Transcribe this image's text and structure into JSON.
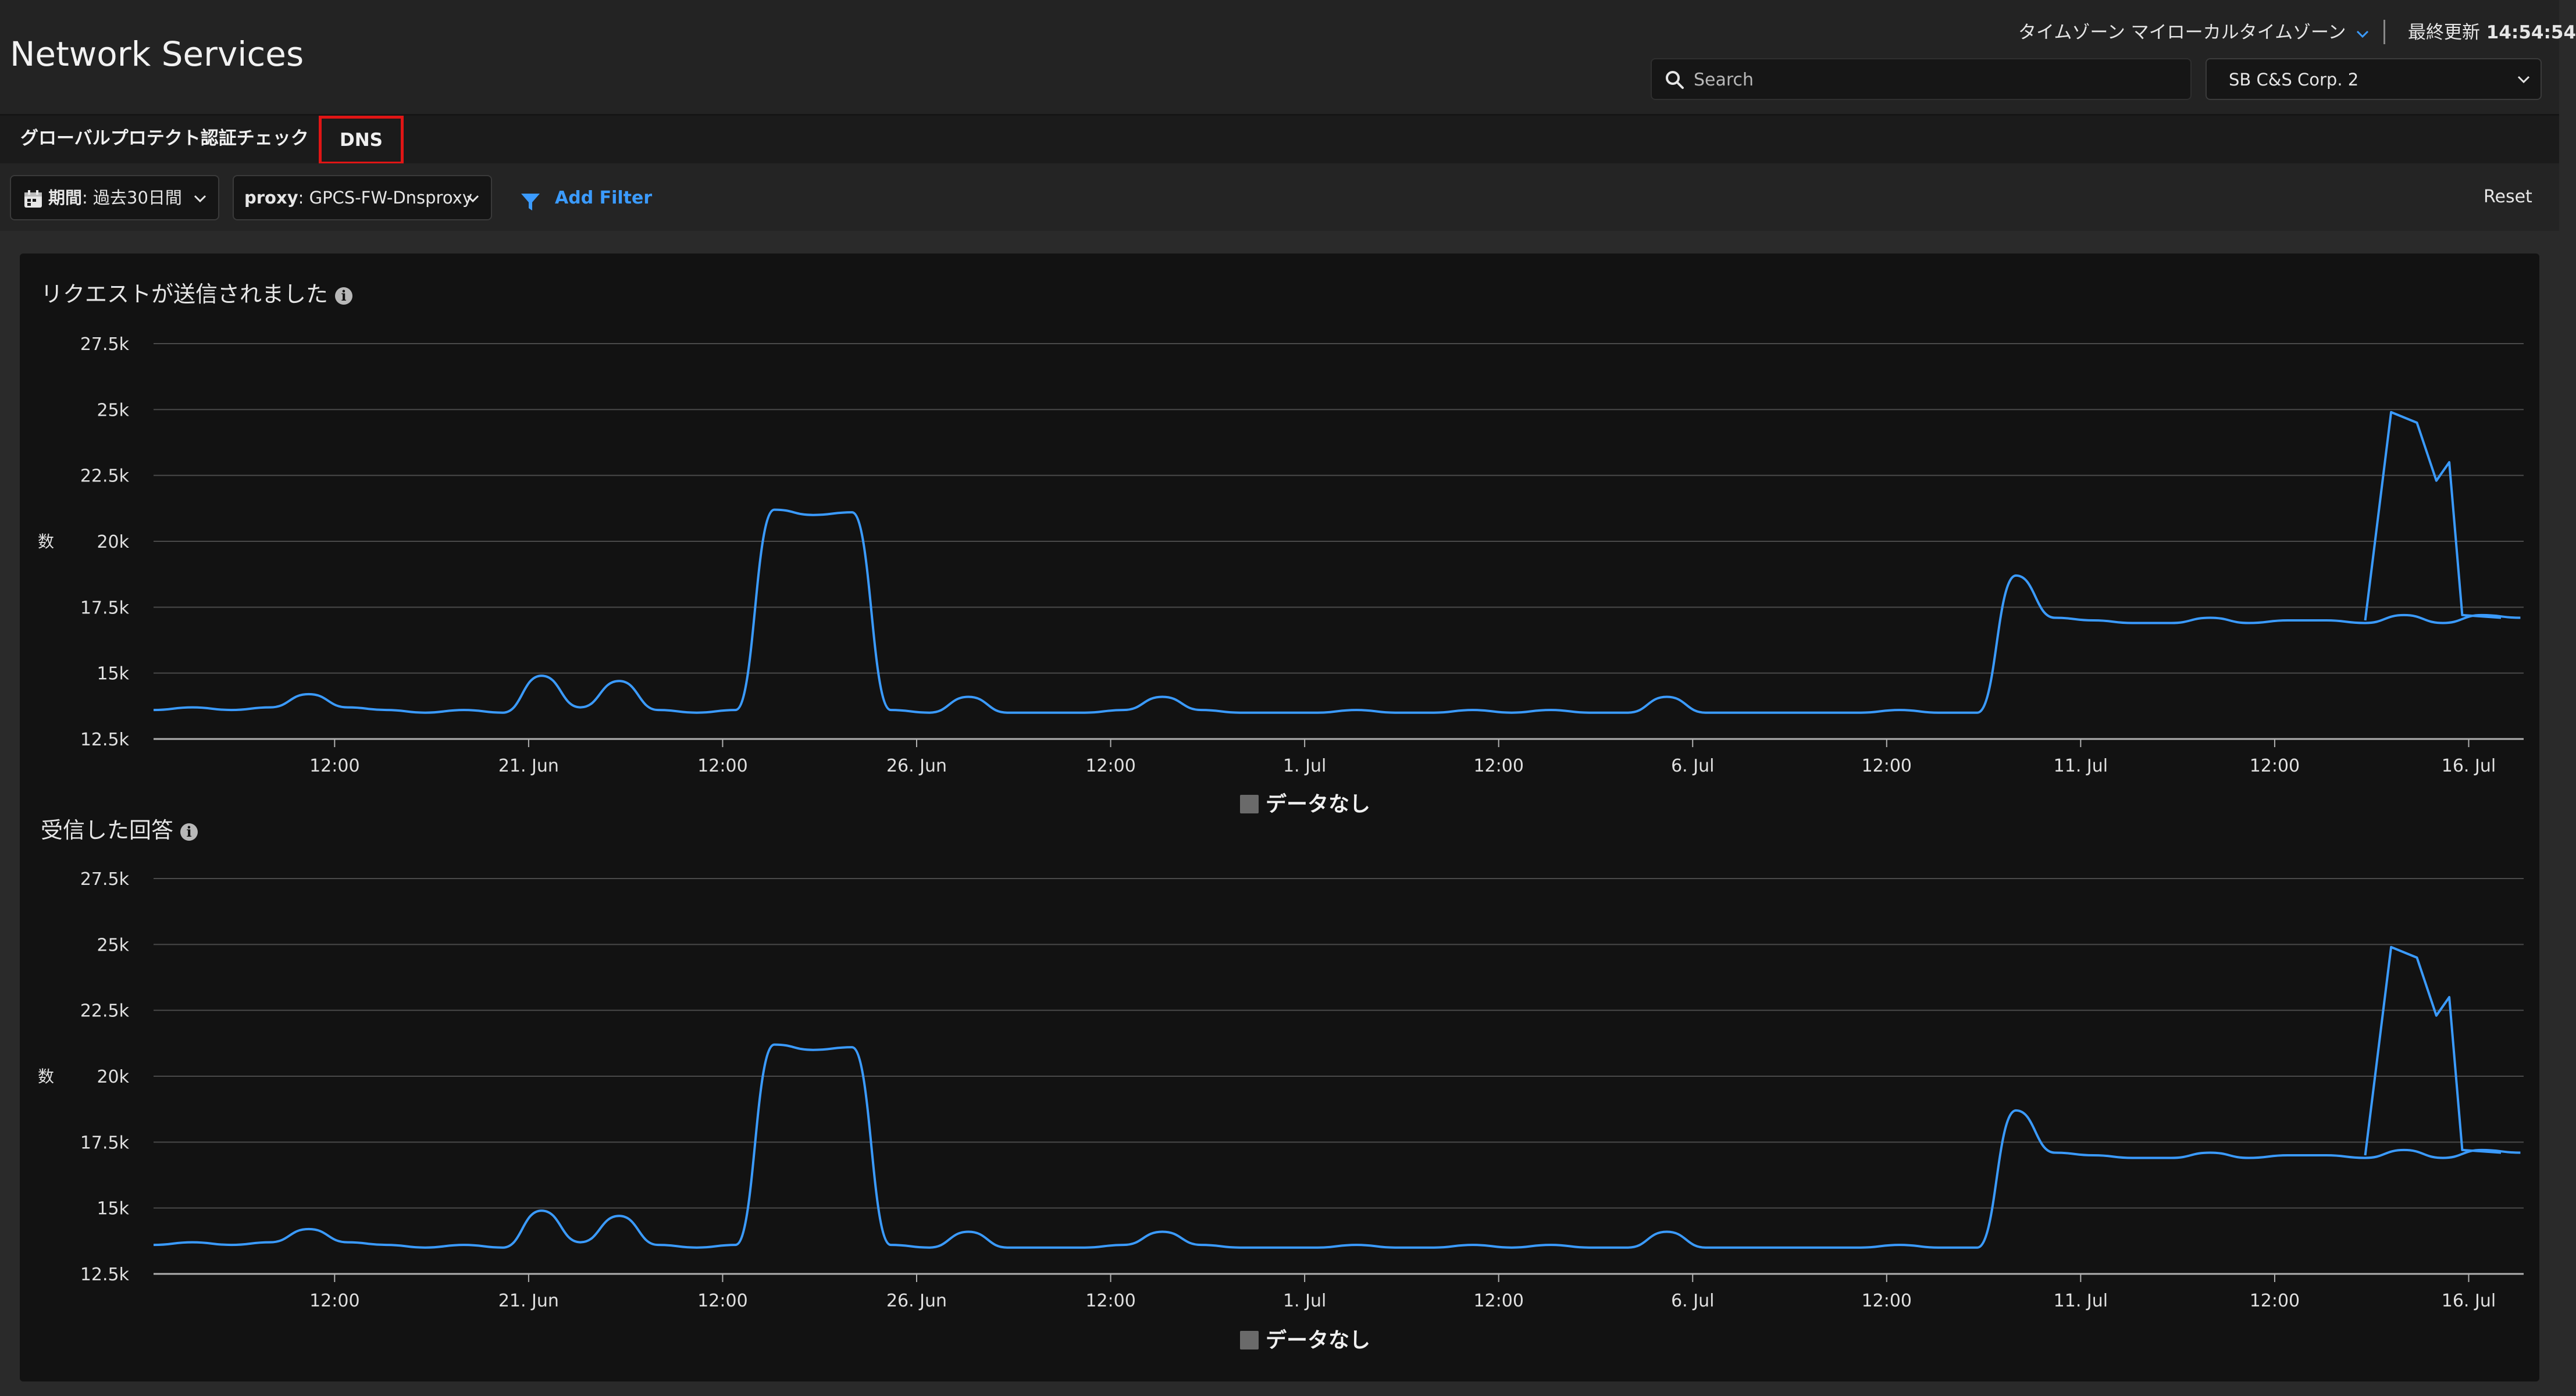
{
  "header": {
    "title": "Network Services",
    "timezone_label": "タイムゾーン マイローカルタイムゾーン",
    "last_updated_label": "最終更新",
    "last_updated_time": "14:54:54",
    "search_placeholder": "Search",
    "tenant": "SB C&S Corp. 2"
  },
  "tabs": [
    {
      "label": "グローバルプロテクト認証チェック",
      "selected": false
    },
    {
      "label": "DNS",
      "selected": true
    }
  ],
  "filters": {
    "period_key": "期間",
    "period_value": "過去30日間",
    "proxy_key": "proxy",
    "proxy_value": "GPCS-FW-Dnsproxy",
    "add_filter": "Add Filter",
    "reset": "Reset"
  },
  "colors": {
    "line": "#3b9bff",
    "accent": "#3b9bff",
    "highlight_border": "#e01515",
    "panel_bg": "#121212"
  },
  "chart_data": [
    {
      "type": "line",
      "title": "リクエストが送信されました",
      "ylabel": "数",
      "legend": "データなし",
      "legend_placement": "bottom-center",
      "ylim": [
        12500,
        27500
      ],
      "y_ticks": [
        "12.5k",
        "15k",
        "17.5k",
        "20k",
        "22.5k",
        "25k",
        "27.5k"
      ],
      "x_ticks": [
        "12:00",
        "21. Jun",
        "12:00",
        "26. Jun",
        "12:00",
        "1. Jul",
        "12:00",
        "6. Jul",
        "12:00",
        "11. Jul",
        "12:00",
        "16. Jul"
      ],
      "x_range_days": [
        "2024-06-16 04:00",
        "2024-07-16 17:00"
      ],
      "x": [
        "06-16 04:00",
        "06-16 16:00",
        "06-17 04:00",
        "06-17 16:00",
        "06-18 04:00",
        "06-18 16:00",
        "06-19 04:00",
        "06-19 16:00",
        "06-20 04:00",
        "06-20 16:00",
        "06-21 04:00",
        "06-21 16:00",
        "06-22 04:00",
        "06-22 16:00",
        "06-23 04:00",
        "06-23 16:00",
        "06-24 04:00",
        "06-24 16:00",
        "06-25 04:00",
        "06-25 16:00",
        "06-26 04:00",
        "06-26 16:00",
        "06-27 04:00",
        "06-27 16:00",
        "06-28 04:00",
        "06-28 16:00",
        "06-29 04:00",
        "06-29 16:00",
        "06-30 04:00",
        "06-30 16:00",
        "07-01 04:00",
        "07-01 16:00",
        "07-02 04:00",
        "07-02 16:00",
        "07-03 04:00",
        "07-03 16:00",
        "07-04 04:00",
        "07-04 16:00",
        "07-05 04:00",
        "07-05 16:00",
        "07-06 04:00",
        "07-06 16:00",
        "07-07 04:00",
        "07-07 16:00",
        "07-08 04:00",
        "07-08 16:00",
        "07-09 04:00",
        "07-09 16:00",
        "07-10 04:00",
        "07-10 16:00",
        "07-11 04:00",
        "07-11 16:00",
        "07-12 04:00",
        "07-12 16:00",
        "07-13 04:00",
        "07-13 16:00",
        "07-14 04:00",
        "07-14 16:00",
        "07-15 04:00",
        "07-15 16:00",
        "07-16 04:00",
        "07-16 16:00"
      ],
      "values": [
        13600,
        13700,
        13600,
        13700,
        14200,
        13700,
        13600,
        13500,
        13600,
        13500,
        14900,
        13700,
        14700,
        13600,
        13500,
        13600,
        21200,
        21000,
        21100,
        13600,
        13500,
        14100,
        13500,
        13500,
        13500,
        13600,
        14100,
        13600,
        13500,
        13500,
        13500,
        13600,
        13500,
        13500,
        13600,
        13500,
        13600,
        13500,
        13500,
        14100,
        13500,
        13500,
        13500,
        13500,
        13500,
        13600,
        13500,
        13500,
        18700,
        17100,
        17000,
        16900,
        16900,
        17100,
        16900,
        17000,
        17000,
        16900,
        17200,
        16900,
        17200,
        17100
      ]
    },
    {
      "type": "line",
      "title": "受信した回答",
      "ylabel": "数",
      "legend": "データなし",
      "legend_placement": "bottom-center",
      "ylim": [
        12500,
        27500
      ],
      "y_ticks": [
        "12.5k",
        "15k",
        "17.5k",
        "20k",
        "22.5k",
        "25k",
        "27.5k"
      ],
      "x_ticks": [
        "12:00",
        "21. Jun",
        "12:00",
        "26. Jun",
        "12:00",
        "1. Jul",
        "12:00",
        "6. Jul",
        "12:00",
        "11. Jul",
        "12:00",
        "16. Jul"
      ]
    }
  ]
}
